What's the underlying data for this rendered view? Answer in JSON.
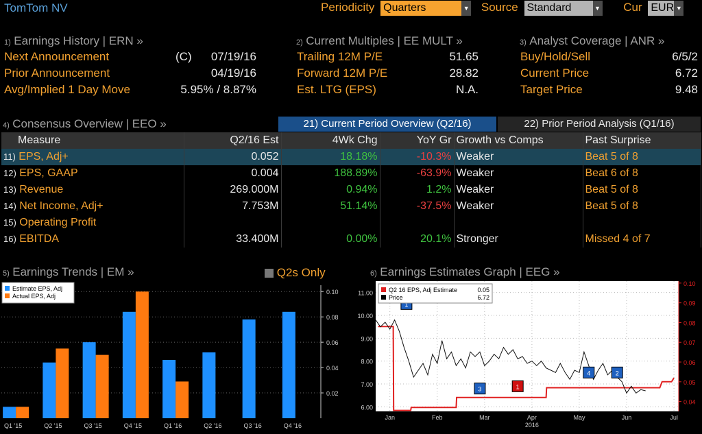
{
  "company": "TomTom NV",
  "top": {
    "periodicity_label": "Periodicity",
    "periodicity_value": "Quarters",
    "source_label": "Source",
    "source_value": "Standard",
    "cur_label": "Cur",
    "cur_value": "EUR"
  },
  "ern": {
    "num": "1)",
    "title": "Earnings History | ERN »",
    "rows": [
      {
        "label": "Next Announcement",
        "prefix": "(C)",
        "value": "07/19/16"
      },
      {
        "label": "Prior Announcement",
        "prefix": "",
        "value": "04/19/16"
      },
      {
        "label": "Avg/Implied 1 Day Move",
        "prefix": "",
        "value": "5.95% / 8.87%"
      }
    ]
  },
  "mult": {
    "num": "2)",
    "title": "Current Multiples | EE MULT »",
    "rows": [
      {
        "label": "Trailing 12M P/E",
        "value": "51.65"
      },
      {
        "label": "Forward 12M P/E",
        "value": "28.82"
      },
      {
        "label": "Est. LTG (EPS)",
        "value": "N.A."
      }
    ]
  },
  "anr": {
    "num": "3)",
    "title": "Analyst Coverage | ANR »",
    "rows": [
      {
        "label": "Buy/Hold/Sell",
        "value": "6/5/2"
      },
      {
        "label": "Current Price",
        "value": "6.72"
      },
      {
        "label": "Target Price",
        "value": "9.48"
      }
    ]
  },
  "eeo": {
    "num": "4)",
    "title": "Consensus Overview | EEO »",
    "tab_current": "21) Current Period Overview (Q2/16)",
    "tab_prior": "22) Prior Period Analysis (Q1/16)",
    "headers": [
      "Measure",
      "Q2/16 Est",
      "4Wk Chg",
      "YoY Gr",
      "Growth vs Comps",
      "Past Surprise"
    ],
    "rows": [
      {
        "num": "11)",
        "measure": "EPS, Adj+",
        "est": "0.052",
        "chg": "18.18%",
        "yoy": "-10.3%",
        "comp": "Weaker",
        "surprise": "Beat 5 of 8"
      },
      {
        "num": "12)",
        "measure": "EPS, GAAP",
        "est": "0.004",
        "chg": "188.89%",
        "yoy": "-63.9%",
        "comp": "Weaker",
        "surprise": "Beat 6 of 8"
      },
      {
        "num": "13)",
        "measure": "Revenue",
        "est": "269.000M",
        "chg": "0.94%",
        "yoy": "1.2%",
        "comp": "Weaker",
        "surprise": "Beat 5 of 8"
      },
      {
        "num": "14)",
        "measure": "Net Income, Adj+",
        "est": "7.753M",
        "chg": "51.14%",
        "yoy": "-37.5%",
        "comp": "Weaker",
        "surprise": "Beat 5 of 8"
      },
      {
        "num": "15)",
        "measure": "Operating Profit",
        "est": "",
        "chg": "",
        "yoy": "",
        "comp": "",
        "surprise": ""
      },
      {
        "num": "16)",
        "measure": "EBITDA",
        "est": "33.400M",
        "chg": "0.00%",
        "yoy": "20.1%",
        "comp": "Stronger",
        "surprise": "Missed 4 of 7"
      }
    ]
  },
  "em": {
    "num": "5)",
    "title": "Earnings Trends | EM »",
    "q2s_label": "Q2s Only"
  },
  "eeg": {
    "num": "6)",
    "title": "Earnings Estimates Graph | EEG »"
  },
  "colors": {
    "accent_orange": "#f7a32f",
    "blue": "#1e90ff",
    "orange_bar": "#ff7a10",
    "green": "#3fc23f",
    "red": "#e84040"
  },
  "chart_data": [
    {
      "type": "bar",
      "title": "",
      "categories": [
        "Q1 '15",
        "Q2 '15",
        "Q3 '15",
        "Q4 '15",
        "Q1 '16",
        "Q2 '16",
        "Q3 '16",
        "Q4 '16"
      ],
      "series": [
        {
          "name": "Estimate EPS, Adj",
          "color": "#1e90ff",
          "values": [
            0.009,
            0.044,
            0.06,
            0.084,
            0.046,
            0.052,
            0.078,
            0.084
          ]
        },
        {
          "name": "Actual EPS, Adj",
          "color": "#ff7a10",
          "values": [
            0.009,
            0.055,
            0.05,
            0.1,
            0.029,
            null,
            null,
            null
          ]
        }
      ],
      "yticks": [
        "0.02",
        "0.04",
        "0.06",
        "0.08",
        "0.10"
      ],
      "ylim": [
        0,
        0.105
      ],
      "legend": "top-left"
    },
    {
      "type": "line",
      "title": "",
      "xlabel": "2016",
      "xticks": [
        "Jan",
        "Feb",
        "Mar",
        "Apr",
        "May",
        "Jun",
        "Jul"
      ],
      "left_ticks": [
        "6.00",
        "7.00",
        "8.00",
        "9.00",
        "10.00",
        "11.00"
      ],
      "right_ticks": [
        "0.04",
        "0.05",
        "0.06",
        "0.07",
        "0.08",
        "0.09",
        "0.10"
      ],
      "left_lim": [
        5.8,
        11.5
      ],
      "right_lim": [
        0.035,
        0.101
      ],
      "series": [
        {
          "name": "Q2 16 EPS, Adj Estimate",
          "legend_value": "0.05",
          "color": "#e02020",
          "axis": "right",
          "points": [
            [
              0.05,
              0.078
            ],
            [
              0.37,
              0.078
            ],
            [
              0.38,
              0.0355
            ],
            [
              0.45,
              0.0355
            ],
            [
              0.55,
              0.0355
            ],
            [
              0.74,
              0.0355
            ],
            [
              0.75,
              0.037
            ],
            [
              1.7,
              0.037
            ],
            [
              1.71,
              0.042
            ],
            [
              1.8,
              0.042
            ],
            [
              3.6,
              0.042
            ],
            [
              3.61,
              0.047
            ],
            [
              6.0,
              0.047
            ],
            [
              6.05,
              0.05
            ],
            [
              6.25,
              0.05
            ],
            [
              6.3,
              0.052
            ]
          ]
        },
        {
          "name": "Price",
          "legend_value": "6.72",
          "color": "#e8e8e8",
          "axis": "left",
          "points": [
            [
              0.0,
              9.8
            ],
            [
              0.1,
              9.5
            ],
            [
              0.2,
              9.7
            ],
            [
              0.3,
              9.4
            ],
            [
              0.4,
              9.8
            ],
            [
              0.5,
              9.3
            ],
            [
              0.6,
              8.6
            ],
            [
              0.7,
              8.0
            ],
            [
              0.8,
              7.3
            ],
            [
              0.9,
              7.6
            ],
            [
              1.0,
              7.9
            ],
            [
              1.1,
              7.4
            ],
            [
              1.2,
              8.3
            ],
            [
              1.3,
              7.9
            ],
            [
              1.4,
              8.9
            ],
            [
              1.5,
              8.1
            ],
            [
              1.6,
              8.4
            ],
            [
              1.7,
              7.8
            ],
            [
              1.8,
              8.1
            ],
            [
              1.9,
              7.7
            ],
            [
              2.0,
              8.4
            ],
            [
              2.1,
              8.2
            ],
            [
              2.2,
              8.4
            ],
            [
              2.3,
              7.8
            ],
            [
              2.4,
              8.0
            ],
            [
              2.5,
              8.3
            ],
            [
              2.6,
              8.1
            ],
            [
              2.7,
              8.6
            ],
            [
              2.8,
              8.3
            ],
            [
              2.9,
              8.5
            ],
            [
              3.0,
              8.1
            ],
            [
              3.1,
              8.2
            ],
            [
              3.2,
              7.9
            ],
            [
              3.3,
              8.0
            ],
            [
              3.4,
              7.8
            ],
            [
              3.5,
              8.0
            ],
            [
              3.6,
              7.7
            ],
            [
              3.7,
              7.6
            ],
            [
              3.8,
              7.5
            ],
            [
              3.9,
              7.9
            ],
            [
              4.0,
              7.5
            ],
            [
              4.1,
              7.2
            ],
            [
              4.2,
              7.6
            ],
            [
              4.3,
              7.5
            ],
            [
              4.4,
              8.4
            ],
            [
              4.5,
              7.8
            ],
            [
              4.6,
              7.2
            ],
            [
              4.7,
              7.6
            ],
            [
              4.8,
              7.9
            ],
            [
              4.9,
              7.4
            ],
            [
              5.0,
              7.6
            ],
            [
              5.1,
              7.3
            ],
            [
              5.2,
              7.1
            ],
            [
              5.3,
              6.6
            ],
            [
              5.4,
              6.9
            ],
            [
              5.5,
              6.6
            ],
            [
              5.6,
              6.75
            ],
            [
              5.7,
              6.7
            ]
          ]
        }
      ],
      "markers": [
        {
          "label": "1",
          "x": 0.65,
          "y": 10.5,
          "kind": "beat"
        },
        {
          "label": "3",
          "x": 2.2,
          "y": 6.8,
          "kind": "beat"
        },
        {
          "label": "1",
          "x": 3.0,
          "y": 6.9,
          "kind": "miss"
        },
        {
          "label": "4",
          "x": 4.5,
          "y": 7.5,
          "kind": "beat"
        },
        {
          "label": "2",
          "x": 5.1,
          "y": 7.5,
          "kind": "beat"
        }
      ]
    }
  ]
}
